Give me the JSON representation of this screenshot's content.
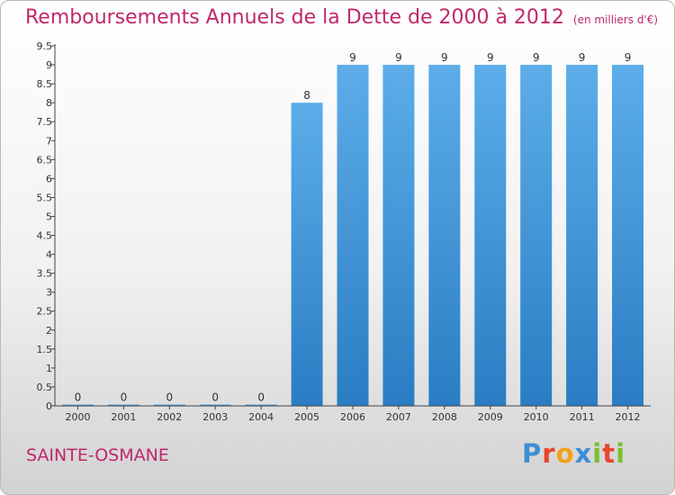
{
  "header": {
    "title": "Remboursements Annuels de la Dette de 2000 à 2012",
    "unit": "(en milliers d'€)"
  },
  "footer": {
    "commune": "SAINTE-OSMANE",
    "logo_letters": [
      "P",
      "r",
      "o",
      "x",
      "i",
      "t",
      "i"
    ],
    "logo_colors": [
      "#3a8fd6",
      "#e8452c",
      "#f2a11b",
      "#3a8fd6",
      "#7bbf2f",
      "#e8452c",
      "#7bbf2f"
    ]
  },
  "chart_data": {
    "type": "bar",
    "categories": [
      "2000",
      "2001",
      "2002",
      "2003",
      "2004",
      "2005",
      "2006",
      "2007",
      "2008",
      "2009",
      "2010",
      "2011",
      "2012"
    ],
    "values": [
      0,
      0,
      0,
      0,
      0,
      8,
      9,
      9,
      9,
      9,
      9,
      9,
      9
    ],
    "value_labels": [
      "0",
      "0",
      "0",
      "0",
      "0",
      "8",
      "9",
      "9",
      "9",
      "9",
      "9",
      "9",
      "9"
    ],
    "yticks": [
      0,
      0.5,
      1,
      1.5,
      2,
      2.5,
      3,
      3.5,
      4,
      4.5,
      5,
      5.5,
      6,
      6.5,
      7,
      7.5,
      8,
      8.5,
      9,
      9.5
    ],
    "ytick_labels": [
      "0",
      "0.5",
      "1",
      "1.5",
      "2",
      "2.5",
      "3",
      "3.5",
      "4",
      "4.5",
      "5",
      "5.5",
      "6",
      "6.5",
      "7",
      "7.5",
      "8",
      "8.5",
      "9",
      "9.5"
    ],
    "ylim": [
      0,
      9.5
    ],
    "bar_color": "#3f93d6",
    "grid": false
  }
}
